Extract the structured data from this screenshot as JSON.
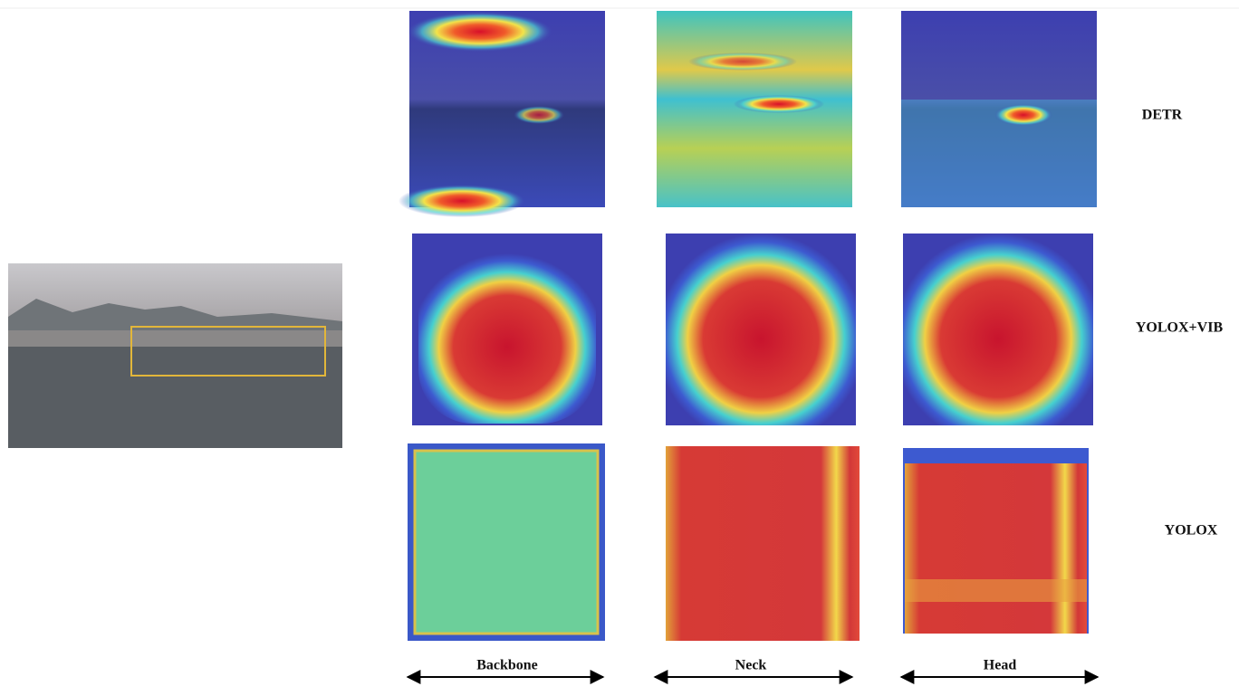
{
  "row_labels": [
    "DETR",
    "YOLOX+VIB",
    "YOLOX"
  ],
  "column_labels": [
    "Backbone",
    "Neck",
    "Head"
  ]
}
